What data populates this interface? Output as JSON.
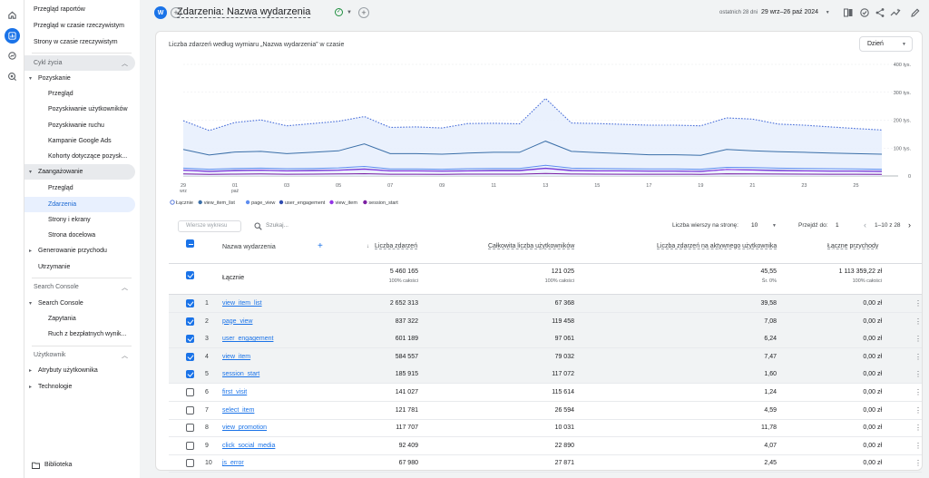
{
  "rail": {
    "icons": [
      "home-icon",
      "reports-icon",
      "explore-icon",
      "advertising-icon"
    ]
  },
  "nav": {
    "items": [
      {
        "label": "Przegląd raportów"
      },
      {
        "label": "Przegląd w czasie rzeczywistym"
      },
      {
        "label": "Strony w czasie rzeczywistym"
      }
    ],
    "sections": {
      "cykl": "Cykl życia",
      "search": "Search Console",
      "user": "Użytkownik"
    },
    "pozyskanie": {
      "label": "Pozyskanie",
      "children": [
        "Przegląd",
        "Pozyskiwanie użytkowników",
        "Pozyskiwanie ruchu",
        "Kampanie Google Ads",
        "Kohorty dotyczące pozysk..."
      ]
    },
    "zaangazowanie": {
      "label": "Zaangażowanie",
      "children": [
        "Przegląd",
        "Zdarzenia",
        "Strony i ekrany",
        "Strona docelowa"
      ]
    },
    "generowanie": "Generowanie przychodu",
    "utrzymanie": "Utrzymanie",
    "search_console": {
      "label": "Search Console",
      "children": [
        "Zapytania",
        "Ruch z bezpłatnych wynik..."
      ]
    },
    "atrybuty": "Atrybuty użytkownika",
    "technologie": "Technologie",
    "biblioteka": "Biblioteka"
  },
  "top": {
    "avatar": "W",
    "title": "Zdarzenia: Nazwa wydarzenia",
    "date_label": "ostatnich 28 dni",
    "date_range": "29 wrz–26 paź 2024"
  },
  "card": {
    "title": "Liczba zdarzeń według wymiaru „Nazwa wydarzenia” w czasie",
    "granularity": "Dzień"
  },
  "chart_data": {
    "type": "line",
    "x": [
      "29 wrz",
      "30",
      "01 paź",
      "02",
      "03",
      "04",
      "05",
      "06",
      "07",
      "08",
      "09",
      "10",
      "11",
      "12",
      "13",
      "14",
      "15",
      "16",
      "17",
      "18",
      "19",
      "20",
      "21",
      "22",
      "23",
      "24",
      "25",
      "26"
    ],
    "x_ticks": [
      {
        "label": "29",
        "sub": "wrz"
      },
      {
        "label": "01",
        "sub": "paź"
      },
      {
        "label": "03"
      },
      {
        "label": "05"
      },
      {
        "label": "07"
      },
      {
        "label": "09"
      },
      {
        "label": "11"
      },
      {
        "label": "13"
      },
      {
        "label": "15"
      },
      {
        "label": "17"
      },
      {
        "label": "19"
      },
      {
        "label": "21"
      },
      {
        "label": "23"
      },
      {
        "label": "25"
      }
    ],
    "y_ticks": [
      "400 tys.",
      "300 tys.",
      "200 tys.",
      "100 tys.",
      "0"
    ],
    "ylim": [
      0,
      400000
    ],
    "series": [
      {
        "name": "Łącznie",
        "color": "#4a6fd9",
        "dashed": true,
        "values": [
          198000,
          163000,
          192000,
          201000,
          180000,
          188000,
          196000,
          213000,
          174000,
          176000,
          172000,
          188000,
          189000,
          187000,
          278000,
          190000,
          188000,
          185000,
          182000,
          182000,
          180000,
          208000,
          204000,
          186000,
          182000,
          176000,
          170000,
          165000
        ]
      },
      {
        "name": "view_item_list",
        "color": "#3b6fa8",
        "values": [
          95000,
          75000,
          86000,
          88000,
          80000,
          85000,
          90000,
          115000,
          80000,
          80000,
          78000,
          82000,
          85000,
          85000,
          125000,
          88000,
          84000,
          80000,
          76000,
          76000,
          74000,
          95000,
          90000,
          87000,
          85000,
          82000,
          80000,
          78000
        ]
      },
      {
        "name": "page_view",
        "color": "#5e8df0",
        "values": [
          28000,
          24000,
          27000,
          28000,
          26000,
          27000,
          29000,
          34000,
          25000,
          25000,
          24000,
          26000,
          27000,
          27000,
          38000,
          28000,
          27000,
          26000,
          25000,
          25000,
          24000,
          31000,
          30000,
          28000,
          27000,
          26000,
          25000,
          24000
        ]
      },
      {
        "name": "user_engagement",
        "color": "#2f4bb0",
        "values": [
          21000,
          17000,
          20000,
          21000,
          19000,
          20000,
          21000,
          25000,
          19000,
          19000,
          18000,
          19000,
          20000,
          20000,
          28000,
          20000,
          19000,
          19000,
          18000,
          18000,
          17000,
          23000,
          22000,
          20000,
          19000,
          18000,
          18000,
          17000
        ]
      },
      {
        "name": "view_item",
        "color": "#9334e6",
        "values": [
          20000,
          16000,
          19000,
          20000,
          18000,
          19000,
          20000,
          24000,
          18000,
          18000,
          17000,
          18000,
          19000,
          19000,
          27000,
          19000,
          18000,
          18000,
          17000,
          17000,
          16000,
          23000,
          21000,
          19000,
          18000,
          17000,
          17000,
          16000
        ]
      },
      {
        "name": "session_start",
        "color": "#7b1fa2",
        "values": [
          7000,
          5500,
          6500,
          7000,
          6300,
          6500,
          7000,
          8200,
          6300,
          6300,
          6000,
          6400,
          6600,
          6600,
          9000,
          6700,
          6400,
          6300,
          6100,
          6100,
          5900,
          7800,
          7300,
          6700,
          6500,
          6200,
          6100,
          5900
        ]
      }
    ],
    "legend_position": "bottom"
  },
  "table": {
    "search_chart_placeholder": "Wiersze wykresu",
    "search_placeholder": "Szukaj...",
    "rows_per_page_label": "Liczba wierszy na stronę:",
    "rows_per_page": "10",
    "goto_label": "Przejdź do:",
    "goto_value": "1",
    "range": "1–10 z 28",
    "columns": [
      "Nazwa wydarzenia",
      "Liczba zdarzeń",
      "Całkowita liczba użytkowników",
      "Liczba zdarzeń na aktywnego użytkownika",
      "Łączne przychody"
    ],
    "total": {
      "label": "Łącznie",
      "events": "5 460 165",
      "users": "121 025",
      "per_user": "45,55",
      "revenue": "1 113 359,22 zł",
      "events_sub": "100% całości",
      "users_sub": "100% całości",
      "per_user_sub": "Śr. 0%",
      "revenue_sub": "100% całości"
    },
    "rows": [
      {
        "n": "1",
        "name": "view_item_list",
        "events": "2 652 313",
        "users": "67 368",
        "per_user": "39,58",
        "revenue": "0,00 zł",
        "checked": true
      },
      {
        "n": "2",
        "name": "page_view",
        "events": "837 322",
        "users": "119 458",
        "per_user": "7,08",
        "revenue": "0,00 zł",
        "checked": true
      },
      {
        "n": "3",
        "name": "user_engagement",
        "events": "601 189",
        "users": "97 061",
        "per_user": "6,24",
        "revenue": "0,00 zł",
        "checked": true
      },
      {
        "n": "4",
        "name": "view_item",
        "events": "584 557",
        "users": "79 032",
        "per_user": "7,47",
        "revenue": "0,00 zł",
        "checked": true
      },
      {
        "n": "5",
        "name": "session_start",
        "events": "185 915",
        "users": "117 072",
        "per_user": "1,60",
        "revenue": "0,00 zł",
        "checked": true
      },
      {
        "n": "6",
        "name": "first_visit",
        "events": "141 027",
        "users": "115 614",
        "per_user": "1,24",
        "revenue": "0,00 zł",
        "checked": false
      },
      {
        "n": "7",
        "name": "select_item",
        "events": "121 781",
        "users": "26 594",
        "per_user": "4,59",
        "revenue": "0,00 zł",
        "checked": false
      },
      {
        "n": "8",
        "name": "view_promotion",
        "events": "117 707",
        "users": "10 031",
        "per_user": "11,78",
        "revenue": "0,00 zł",
        "checked": false
      },
      {
        "n": "9",
        "name": "click_social_media",
        "events": "92 409",
        "users": "22 890",
        "per_user": "4,07",
        "revenue": "0,00 zł",
        "checked": false
      },
      {
        "n": "10",
        "name": "js_error",
        "events": "67 980",
        "users": "27 871",
        "per_user": "2,45",
        "revenue": "0,00 zł",
        "checked": false
      }
    ]
  }
}
